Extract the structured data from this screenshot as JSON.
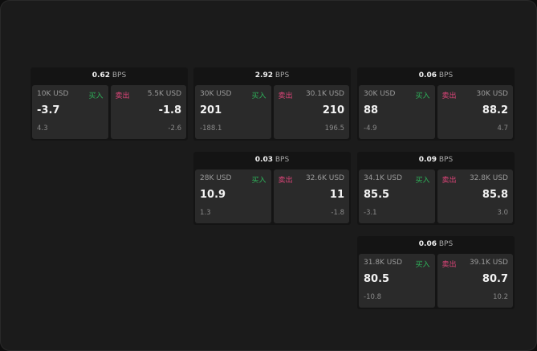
{
  "buy_label": "买入",
  "sell_label": "卖出",
  "colors": {
    "buy": "#2eb35a",
    "sell": "#e0457a",
    "panel": "#2a2a2a",
    "background": "#1b1b1b"
  },
  "widgets": [
    {
      "spread": "0.62",
      "unit": "BPS",
      "bid": {
        "size": "10K USD",
        "price": "-3.7",
        "delta": "4.3"
      },
      "ask": {
        "size": "5.5K USD",
        "price": "-1.8",
        "delta": "-2.6"
      }
    },
    {
      "spread": "2.92",
      "unit": "BPS",
      "bid": {
        "size": "30K USD",
        "price": "201",
        "delta": "-188.1"
      },
      "ask": {
        "size": "30.1K USD",
        "price": "210",
        "delta": "196.5"
      }
    },
    {
      "spread": "0.06",
      "unit": "BPS",
      "bid": {
        "size": "30K USD",
        "price": "88",
        "delta": "-4.9"
      },
      "ask": {
        "size": "30K USD",
        "price": "88.2",
        "delta": "4.7"
      }
    },
    {
      "spread": "0.03",
      "unit": "BPS",
      "bid": {
        "size": "28K USD",
        "price": "10.9",
        "delta": "1.3"
      },
      "ask": {
        "size": "32.6K USD",
        "price": "11",
        "delta": "-1.8"
      }
    },
    {
      "spread": "0.09",
      "unit": "BPS",
      "bid": {
        "size": "34.1K USD",
        "price": "85.5",
        "delta": "-3.1"
      },
      "ask": {
        "size": "32.8K USD",
        "price": "85.8",
        "delta": "3.0"
      }
    },
    {
      "spread": "0.06",
      "unit": "BPS",
      "bid": {
        "size": "31.8K USD",
        "price": "80.5",
        "delta": "-10.8"
      },
      "ask": {
        "size": "39.1K USD",
        "price": "80.7",
        "delta": "10.2"
      }
    }
  ]
}
